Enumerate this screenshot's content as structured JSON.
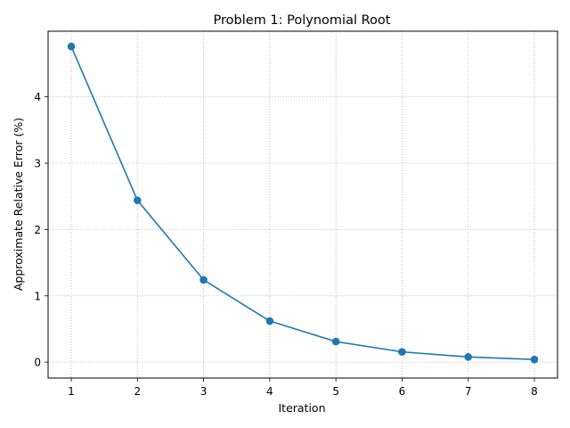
{
  "chart_data": {
    "type": "line",
    "title": "Problem 1: Polynomial Root",
    "xlabel": "Iteration",
    "ylabel": "Approximate Relative Error (%)",
    "x": [
      1,
      2,
      3,
      4,
      5,
      6,
      7,
      8
    ],
    "series": [
      {
        "values": [
          4.76,
          2.44,
          1.24,
          0.62,
          0.31,
          0.155,
          0.078,
          0.04
        ],
        "color": "#1f77b4",
        "marker": "circle"
      }
    ],
    "xticks": [
      1,
      2,
      3,
      4,
      5,
      6,
      7,
      8
    ],
    "yticks": [
      0,
      1,
      2,
      3,
      4
    ],
    "xlim": [
      0.65,
      8.35
    ],
    "ylim": [
      -0.24,
      4.99
    ],
    "grid": true,
    "grid_style": "dotted",
    "grid_color": "#b0b0b0"
  }
}
